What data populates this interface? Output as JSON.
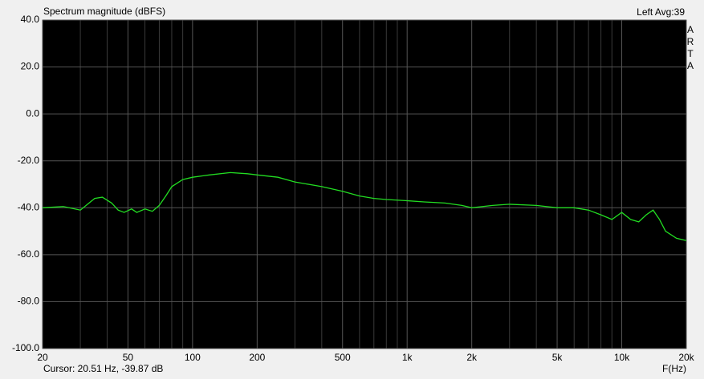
{
  "chart_data": {
    "type": "line",
    "title": "Spectrum magnitude (dBFS)",
    "channel_info": "Left  Avg:39",
    "brand": "ARTA",
    "cursor": "Cursor: 20.51 Hz, -39.87 dB",
    "x_label": "F(Hz)",
    "log_x": true,
    "grid": true,
    "xlim": [
      20,
      20000
    ],
    "ylim": [
      -100,
      40
    ],
    "xticks": [
      20,
      50,
      100,
      200,
      500,
      {
        "value": 1000,
        "label": "1k"
      },
      {
        "value": 2000,
        "label": "2k"
      },
      {
        "value": 5000,
        "label": "5k"
      },
      {
        "value": 10000,
        "label": "10k"
      },
      {
        "value": 20000,
        "label": "20k"
      }
    ],
    "xminorticks": [
      30,
      40,
      60,
      70,
      80,
      90,
      300,
      400,
      600,
      700,
      800,
      900,
      3000,
      4000,
      6000,
      7000,
      8000,
      9000
    ],
    "yticks": [
      {
        "value": 40,
        "label": "40.0"
      },
      {
        "value": 20,
        "label": "20.0"
      },
      {
        "value": 0,
        "label": "0.0"
      },
      {
        "value": -20,
        "label": "-20.0"
      },
      {
        "value": -40,
        "label": "-40.0"
      },
      {
        "value": -60,
        "label": "-60.0"
      },
      {
        "value": -80,
        "label": "-80.0"
      },
      {
        "value": -100,
        "label": "-100.0"
      }
    ],
    "series": [
      {
        "color": "#22dd22",
        "x": [
          20,
          25,
          30,
          35,
          38,
          42,
          45,
          48,
          52,
          55,
          60,
          65,
          70,
          75,
          80,
          90,
          100,
          120,
          150,
          180,
          200,
          250,
          300,
          400,
          500,
          600,
          700,
          800,
          1000,
          1200,
          1500,
          1800,
          2000,
          2500,
          3000,
          4000,
          5000,
          6000,
          7000,
          8000,
          9000,
          10000,
          11000,
          12000,
          13000,
          14000,
          15000,
          16000,
          18000,
          20000
        ],
        "values": [
          -40,
          -39.5,
          -41,
          -36,
          -35.5,
          -38,
          -41,
          -42,
          -40.5,
          -42,
          -40.5,
          -41.5,
          -39,
          -35,
          -31,
          -28,
          -27,
          -26,
          -25,
          -25.5,
          -26,
          -27,
          -29,
          -31,
          -33,
          -35,
          -36,
          -36.5,
          -37,
          -37.5,
          -38,
          -39,
          -40,
          -39,
          -38.5,
          -39,
          -40,
          -40,
          -41,
          -43,
          -45,
          -42,
          -45,
          -46,
          -43,
          -41,
          -45,
          -50,
          -53,
          -54
        ]
      }
    ]
  }
}
